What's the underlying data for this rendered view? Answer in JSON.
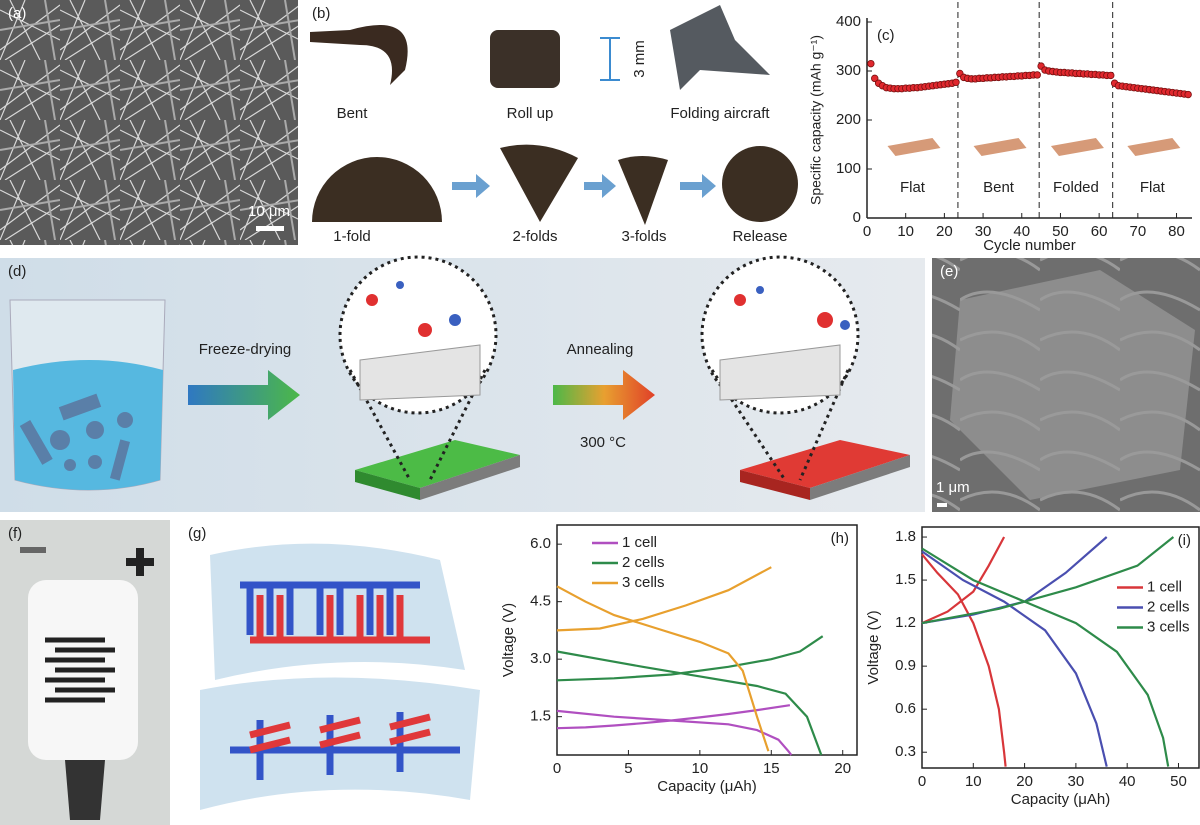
{
  "panels": {
    "a": {
      "label": "(a)",
      "scale_bar": "10 μm"
    },
    "b": {
      "label": "(b)",
      "photos": [
        "Bent",
        "Roll up",
        "Folding aircraft",
        "1-fold",
        "2-folds",
        "3-folds",
        "Release"
      ],
      "dimension": "3 mm"
    },
    "d": {
      "label": "(d)",
      "steps": [
        "Freeze-drying",
        "Annealing"
      ],
      "condition": "300 °C"
    },
    "e": {
      "label": "(e)",
      "scale_bar": "1 μm"
    },
    "f": {
      "label": "(f)"
    },
    "g": {
      "label": "(g)"
    }
  },
  "chart_data": [
    {
      "type": "scatter",
      "label": "(c)",
      "xlabel": "Cycle number",
      "ylabel": "Specific capacity (mAh g⁻¹)",
      "xlim": [
        0,
        84
      ],
      "ylim": [
        0,
        400
      ],
      "xticks": [
        0,
        10,
        20,
        30,
        40,
        50,
        60,
        70,
        80
      ],
      "yticks": [
        0,
        100,
        200,
        300,
        400
      ],
      "dividers": [
        23.5,
        44.5,
        63.5
      ],
      "regions": [
        "Flat",
        "Bent",
        "Folded",
        "Flat"
      ],
      "series": [
        {
          "color": "#e0282e",
          "x": [
            1,
            2,
            3,
            4,
            5,
            6,
            7,
            8,
            9,
            10,
            11,
            12,
            13,
            14,
            15,
            16,
            17,
            18,
            19,
            20,
            21,
            22,
            23,
            24,
            25,
            26,
            27,
            28,
            29,
            30,
            31,
            32,
            33,
            34,
            35,
            36,
            37,
            38,
            39,
            40,
            41,
            42,
            43,
            44,
            45,
            46,
            47,
            48,
            49,
            50,
            51,
            52,
            53,
            54,
            55,
            56,
            57,
            58,
            59,
            60,
            61,
            62,
            63,
            64,
            65,
            66,
            67,
            68,
            69,
            70,
            71,
            72,
            73,
            74,
            75,
            76,
            77,
            78,
            79,
            80,
            81,
            82,
            83
          ],
          "values": [
            315,
            285,
            275,
            270,
            266,
            265,
            264,
            264,
            264,
            265,
            265,
            266,
            266,
            267,
            268,
            269,
            270,
            271,
            272,
            273,
            274,
            275,
            277,
            295,
            287,
            285,
            284,
            284,
            285,
            285,
            286,
            286,
            287,
            287,
            288,
            288,
            289,
            289,
            290,
            290,
            291,
            291,
            292,
            292,
            310,
            302,
            300,
            299,
            298,
            297,
            297,
            296,
            296,
            295,
            295,
            294,
            294,
            293,
            293,
            292,
            292,
            291,
            291,
            275,
            270,
            269,
            268,
            267,
            266,
            265,
            264,
            263,
            262,
            261,
            260,
            259,
            258,
            257,
            256,
            255,
            254,
            253,
            252
          ]
        }
      ]
    },
    {
      "type": "line",
      "label": "(h)",
      "xlabel": "Capacity (μAh)",
      "ylabel": "Voltage (V)",
      "xlim": [
        0,
        21
      ],
      "ylim": [
        0.5,
        6.5
      ],
      "xticks": [
        0,
        5,
        10,
        15,
        20
      ],
      "yticks": [
        1.5,
        {
          "value": 3,
          "label": "3.0"
        },
        4.5,
        {
          "value": 6,
          "label": "6.0"
        }
      ],
      "legend": "upper left",
      "series": [
        {
          "name": "1 cell",
          "color": "#b04fc0",
          "x": [
            0,
            2,
            4,
            6,
            8,
            10,
            12,
            14,
            16.3,
            null,
            0,
            4,
            8,
            12,
            14,
            15.5,
            16.2,
            16.4
          ],
          "values": [
            1.2,
            1.22,
            1.27,
            1.33,
            1.4,
            1.48,
            1.57,
            1.67,
            1.8,
            null,
            1.65,
            1.5,
            1.4,
            1.3,
            1.15,
            0.9,
            0.6,
            0.5
          ]
        },
        {
          "name": "2 cells",
          "color": "#2e8b4a",
          "x": [
            0,
            4,
            8,
            12,
            15,
            17,
            18.6,
            null,
            0,
            3,
            6,
            10,
            14,
            16,
            17.5,
            18.5
          ],
          "values": [
            2.45,
            2.5,
            2.6,
            2.8,
            3.0,
            3.2,
            3.6,
            null,
            3.2,
            3.0,
            2.8,
            2.55,
            2.3,
            2.1,
            1.5,
            0.5
          ]
        },
        {
          "name": "3 cells",
          "color": "#e8a02e",
          "x": [
            0,
            3,
            6,
            9,
            12,
            15,
            null,
            0,
            2,
            4,
            7,
            10,
            12,
            13,
            14,
            14.8
          ],
          "values": [
            3.75,
            3.8,
            4.05,
            4.4,
            4.8,
            5.4,
            null,
            4.9,
            4.5,
            4.15,
            3.8,
            3.45,
            3.15,
            2.7,
            1.5,
            0.6
          ]
        }
      ]
    },
    {
      "type": "line",
      "label": "(i)",
      "xlabel": "Capacity (μAh)",
      "ylabel": "Voltage (V)",
      "xlim": [
        0,
        54
      ],
      "ylim": [
        0.19,
        1.87
      ],
      "xticks": [
        0,
        10,
        20,
        30,
        40,
        50
      ],
      "yticks": [
        0.3,
        0.6,
        0.9,
        1.2,
        1.5,
        1.8
      ],
      "legend": "right",
      "series": [
        {
          "name": "1 cell",
          "color": "#d8363a",
          "x": [
            0,
            5,
            10,
            13,
            16,
            null,
            0,
            3,
            7,
            10,
            13,
            15,
            16,
            16.3
          ],
          "values": [
            1.2,
            1.28,
            1.42,
            1.6,
            1.8,
            null,
            1.68,
            1.55,
            1.4,
            1.2,
            0.9,
            0.6,
            0.3,
            0.2
          ]
        },
        {
          "name": "2 cells",
          "color": "#4a4fb0",
          "x": [
            0,
            10,
            20,
            28,
            36,
            null,
            0,
            8,
            16,
            24,
            30,
            34,
            36
          ],
          "values": [
            1.2,
            1.26,
            1.35,
            1.55,
            1.8,
            null,
            1.7,
            1.5,
            1.35,
            1.15,
            0.85,
            0.5,
            0.2
          ]
        },
        {
          "name": "3 cells",
          "color": "#2e8b4a",
          "x": [
            0,
            15,
            30,
            42,
            49,
            null,
            0,
            10,
            20,
            30,
            38,
            44,
            47,
            48
          ],
          "values": [
            1.2,
            1.3,
            1.45,
            1.6,
            1.8,
            null,
            1.72,
            1.5,
            1.35,
            1.2,
            1.0,
            0.7,
            0.4,
            0.2
          ]
        }
      ]
    }
  ]
}
